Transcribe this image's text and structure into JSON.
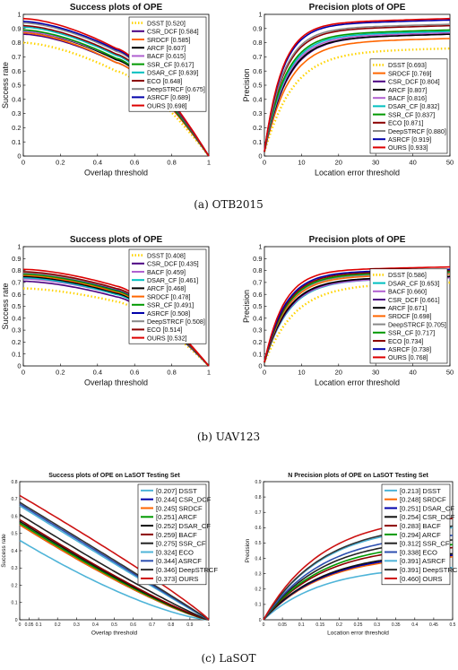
{
  "captions": [
    "(a) OTB2015",
    "(b) UAV123",
    "(c) LaSOT"
  ],
  "chart_data": [
    {
      "type": "line",
      "title": "Success plots of OPE",
      "xlabel": "Overlap threshold",
      "ylabel": "Success rate",
      "xlim": [
        0,
        1
      ],
      "ylim": [
        0,
        1
      ],
      "xticks": [
        0,
        0.2,
        0.4,
        0.6,
        0.8,
        1
      ],
      "yticks": [
        0,
        0.1,
        0.2,
        0.3,
        0.4,
        0.5,
        0.6,
        0.7,
        0.8,
        0.9,
        1
      ],
      "xtick_labels": [
        "0",
        "0.2",
        "0.4",
        "0.6",
        "0.8",
        "1"
      ],
      "ytick_labels": [
        "0",
        "0.1",
        "0.2",
        "0.3",
        "0.4",
        "0.5",
        "0.6",
        "0.7",
        "0.8",
        "0.9",
        "1"
      ],
      "legend_position": "top-right",
      "grid": false,
      "curve": "success",
      "series": [
        {
          "name": "DSST [0.520]",
          "color": "#ffd400",
          "dotted": true,
          "start": 0.8,
          "knee": 0.6
        },
        {
          "name": "CSR_DCF [0.584]",
          "color": "#4b0082",
          "start": 0.86,
          "knee": 0.66
        },
        {
          "name": "SRDCF [0.585]",
          "color": "#ff6600",
          "start": 0.87,
          "knee": 0.66
        },
        {
          "name": "ARCF [0.607]",
          "color": "#000000",
          "start": 0.88,
          "knee": 0.68
        },
        {
          "name": "BACF [0.615]",
          "color": "#b060d0",
          "start": 0.88,
          "knee": 0.69
        },
        {
          "name": "SSR_CF [0.617]",
          "color": "#009900",
          "start": 0.89,
          "knee": 0.69
        },
        {
          "name": "DSAR_CF [0.639]",
          "color": "#00bfbf",
          "start": 0.91,
          "knee": 0.71
        },
        {
          "name": "ECO [0.648]",
          "color": "#8b0000",
          "start": 0.92,
          "knee": 0.72
        },
        {
          "name": "DeepSTRCF [0.675]",
          "color": "#888888",
          "start": 0.94,
          "knee": 0.74
        },
        {
          "name": "ASRCF [0.689]",
          "color": "#0000aa",
          "start": 0.95,
          "knee": 0.75
        },
        {
          "name": "OURS [0.698]",
          "color": "#dd0000",
          "start": 0.97,
          "knee": 0.76
        }
      ]
    },
    {
      "type": "line",
      "title": "Precision plots of OPE",
      "xlabel": "Location error threshold",
      "ylabel": "Precision",
      "xlim": [
        0,
        50
      ],
      "ylim": [
        0,
        1
      ],
      "xticks": [
        0,
        10,
        20,
        30,
        40,
        50
      ],
      "yticks": [
        0,
        0.1,
        0.2,
        0.3,
        0.4,
        0.5,
        0.6,
        0.7,
        0.8,
        0.9,
        1
      ],
      "xtick_labels": [
        "0",
        "10",
        "20",
        "30",
        "40",
        "50"
      ],
      "ytick_labels": [
        "0",
        "0.1",
        "0.2",
        "0.3",
        "0.4",
        "0.5",
        "0.6",
        "0.7",
        "0.8",
        "0.9",
        "1"
      ],
      "legend_position": "bottom-right",
      "grid": false,
      "curve": "precision",
      "series": [
        {
          "name": "DSST [0.693]",
          "color": "#ffd400",
          "dotted": true,
          "final": 0.76,
          "rate": 0.14
        },
        {
          "name": "SRDCF [0.769]",
          "color": "#ff6600",
          "final": 0.83,
          "rate": 0.16
        },
        {
          "name": "CSR_DCF [0.804]",
          "color": "#4b0082",
          "final": 0.86,
          "rate": 0.17
        },
        {
          "name": "ARCF [0.807]",
          "color": "#000000",
          "final": 0.86,
          "rate": 0.175
        },
        {
          "name": "BACF [0.816]",
          "color": "#b060d0",
          "final": 0.87,
          "rate": 0.18
        },
        {
          "name": "DSAR_CF [0.832]",
          "color": "#00bfbf",
          "final": 0.88,
          "rate": 0.185
        },
        {
          "name": "SSR_CF [0.837]",
          "color": "#009900",
          "final": 0.89,
          "rate": 0.19
        },
        {
          "name": "ECO [0.871]",
          "color": "#8b0000",
          "final": 0.92,
          "rate": 0.2
        },
        {
          "name": "DeepSTRCF [0.880]",
          "color": "#888888",
          "final": 0.93,
          "rate": 0.205
        },
        {
          "name": "ASRCF [0.919]",
          "color": "#0000aa",
          "final": 0.96,
          "rate": 0.215
        },
        {
          "name": "OURS [0.933]",
          "color": "#dd0000",
          "final": 0.97,
          "rate": 0.22
        }
      ]
    },
    {
      "type": "line",
      "title": "Success plots of OPE",
      "xlabel": "Overlap threshold",
      "ylabel": "Success rate",
      "xlim": [
        0,
        1
      ],
      "ylim": [
        0,
        1
      ],
      "xticks": [
        0,
        0.2,
        0.4,
        0.6,
        0.8,
        1
      ],
      "yticks": [
        0,
        0.1,
        0.2,
        0.3,
        0.4,
        0.5,
        0.6,
        0.7,
        0.8,
        0.9,
        1
      ],
      "xtick_labels": [
        "0",
        "0.2",
        "0.4",
        "0.6",
        "0.8",
        "1"
      ],
      "ytick_labels": [
        "0",
        "0.1",
        "0.2",
        "0.3",
        "0.4",
        "0.5",
        "0.6",
        "0.7",
        "0.8",
        "0.9",
        "1"
      ],
      "legend_position": "top-right",
      "grid": false,
      "curve": "success",
      "series": [
        {
          "name": "DSST [0.408]",
          "color": "#ffd400",
          "dotted": true,
          "start": 0.65,
          "knee": 0.54
        },
        {
          "name": "CSR_DCF [0.435]",
          "color": "#4b0082",
          "start": 0.71,
          "knee": 0.58
        },
        {
          "name": "BACF [0.459]",
          "color": "#b060d0",
          "start": 0.73,
          "knee": 0.6
        },
        {
          "name": "DSAR_CF [0.461]",
          "color": "#00bfbf",
          "start": 0.74,
          "knee": 0.6
        },
        {
          "name": "ARCF [0.468]",
          "color": "#000000",
          "start": 0.75,
          "knee": 0.61
        },
        {
          "name": "SRDCF [0.478]",
          "color": "#ff6600",
          "start": 0.76,
          "knee": 0.62
        },
        {
          "name": "SSR_CF [0.491]",
          "color": "#009900",
          "start": 0.77,
          "knee": 0.63
        },
        {
          "name": "ASRCF [0.508]",
          "color": "#0000aa",
          "start": 0.78,
          "knee": 0.64
        },
        {
          "name": "DeepSTRCF [0.508]",
          "color": "#888888",
          "start": 0.78,
          "knee": 0.645
        },
        {
          "name": "ECO [0.514]",
          "color": "#8b0000",
          "start": 0.79,
          "knee": 0.65
        },
        {
          "name": "OURS [0.532]",
          "color": "#dd0000",
          "start": 0.81,
          "knee": 0.67
        }
      ]
    },
    {
      "type": "line",
      "title": "Precision plots of OPE",
      "xlabel": "Location error threshold",
      "ylabel": "Precision",
      "xlim": [
        0,
        50
      ],
      "ylim": [
        0,
        1
      ],
      "xticks": [
        0,
        10,
        20,
        30,
        40,
        50
      ],
      "yticks": [
        0,
        0.1,
        0.2,
        0.3,
        0.4,
        0.5,
        0.6,
        0.7,
        0.8,
        0.9,
        1
      ],
      "xtick_labels": [
        "0",
        "10",
        "20",
        "30",
        "40",
        "50"
      ],
      "ytick_labels": [
        "0",
        "0.1",
        "0.2",
        "0.3",
        "0.4",
        "0.5",
        "0.6",
        "0.7",
        "0.8",
        "0.9",
        "1"
      ],
      "legend_position": "bottom-right",
      "grid": false,
      "curve": "precision",
      "series": [
        {
          "name": "DSST [0.586]",
          "color": "#ffd400",
          "dotted": true,
          "final": 0.7,
          "rate": 0.13
        },
        {
          "name": "DSAR_CF [0.653]",
          "color": "#00bfbf",
          "final": 0.74,
          "rate": 0.16
        },
        {
          "name": "BACF [0.660]",
          "color": "#b060d0",
          "final": 0.74,
          "rate": 0.165
        },
        {
          "name": "CSR_DCF [0.661]",
          "color": "#4b0082",
          "final": 0.75,
          "rate": 0.165
        },
        {
          "name": "ARCF [0.671]",
          "color": "#000000",
          "final": 0.75,
          "rate": 0.17
        },
        {
          "name": "SRDCF [0.698]",
          "color": "#ff6600",
          "final": 0.77,
          "rate": 0.175
        },
        {
          "name": "DeepSTRCF [0.705]",
          "color": "#888888",
          "final": 0.78,
          "rate": 0.18
        },
        {
          "name": "SSR_CF [0.717]",
          "color": "#009900",
          "final": 0.79,
          "rate": 0.18
        },
        {
          "name": "ECO [0.734]",
          "color": "#8b0000",
          "final": 0.8,
          "rate": 0.185
        },
        {
          "name": "ASRCF [0.738]",
          "color": "#0000aa",
          "final": 0.81,
          "rate": 0.19
        },
        {
          "name": "OURS [0.768]",
          "color": "#dd0000",
          "final": 0.83,
          "rate": 0.2
        }
      ]
    },
    {
      "type": "line",
      "title": "Success plots of OPE on LaSOT Testing Set",
      "xlabel": "Overlap threshold",
      "ylabel": "Success rate",
      "xlim": [
        0,
        1
      ],
      "ylim": [
        0,
        0.8
      ],
      "xticks": [
        0,
        0.05,
        0.1,
        0.2,
        0.3,
        0.4,
        0.5,
        0.6,
        0.7,
        0.8,
        0.9,
        1
      ],
      "yticks": [
        0,
        0.1,
        0.2,
        0.3,
        0.4,
        0.5,
        0.6,
        0.7,
        0.8
      ],
      "xtick_labels": [
        "0",
        "0.05",
        "0.1",
        "0.2",
        "0.3",
        "0.4",
        "0.5",
        "0.6",
        "0.7",
        "0.8",
        "0.9",
        "1"
      ],
      "ytick_labels": [
        "0",
        "0.1",
        "0.2",
        "0.3",
        "0.4",
        "0.5",
        "0.6",
        "0.7",
        "0.8"
      ],
      "legend_position": "top-right",
      "grid": false,
      "curve": "lasot-success",
      "series": [
        {
          "name": "[0.207] DSST",
          "color": "#4fb4d8",
          "start": 0.46
        },
        {
          "name": "[0.244] CSR_DCF",
          "color": "#0000aa",
          "start": 0.55
        },
        {
          "name": "[0.245] SRDCF",
          "color": "#ff6600",
          "start": 0.55
        },
        {
          "name": "[0.251] ARCF",
          "color": "#009900",
          "start": 0.56
        },
        {
          "name": "[0.252] DSAR_CF",
          "color": "#111111",
          "start": 0.57
        },
        {
          "name": "[0.259] BACF",
          "color": "#8b0000",
          "start": 0.58
        },
        {
          "name": "[0.275] SSR_CF",
          "color": "#222222",
          "start": 0.61
        },
        {
          "name": "[0.324] ECO",
          "color": "#4fb4d8",
          "start": 0.66
        },
        {
          "name": "[0.344] ASRCF",
          "color": "#2d4fb0",
          "start": 0.67
        },
        {
          "name": "[0.346] DeepSTRCF",
          "color": "#333333",
          "start": 0.68
        },
        {
          "name": "[0.373] OURS",
          "color": "#cc1111",
          "start": 0.72
        }
      ]
    },
    {
      "type": "line",
      "title": "N Precision plots of OPE on LaSOT Testing Set",
      "xlabel": "Location error threshold",
      "ylabel": "Precision",
      "xlim": [
        0,
        0.5
      ],
      "ylim": [
        0,
        0.9
      ],
      "xticks": [
        0,
        0.05,
        0.1,
        0.15,
        0.2,
        0.25,
        0.3,
        0.35,
        0.4,
        0.45,
        0.5
      ],
      "yticks": [
        0,
        0.1,
        0.2,
        0.3,
        0.4,
        0.5,
        0.6,
        0.7,
        0.8,
        0.9
      ],
      "xtick_labels": [
        "0",
        "0.05",
        "0.1",
        "0.15",
        "0.2",
        "0.25",
        "0.3",
        "0.35",
        "0.4",
        "0.45",
        "0.5"
      ],
      "ytick_labels": [
        "0",
        "0.1",
        "0.2",
        "0.3",
        "0.4",
        "0.5",
        "0.6",
        "0.7",
        "0.8",
        "0.9"
      ],
      "legend_position": "top-right",
      "grid": false,
      "curve": "lasot-precision",
      "series": [
        {
          "name": "[0.213] DSST",
          "color": "#4fb4d8",
          "end": 0.34
        },
        {
          "name": "[0.248] SRDCF",
          "color": "#ff6600",
          "end": 0.41
        },
        {
          "name": "[0.251] DSAR_CF",
          "color": "#0000aa",
          "end": 0.42
        },
        {
          "name": "[0.254] CSR_DCF",
          "color": "#111111",
          "end": 0.43
        },
        {
          "name": "[0.283] BACF",
          "color": "#8b0000",
          "end": 0.47
        },
        {
          "name": "[0.294] ARCF",
          "color": "#009900",
          "end": 0.49
        },
        {
          "name": "[0.312] SSR_CF",
          "color": "#222222",
          "end": 0.52
        },
        {
          "name": "[0.338] ECO",
          "color": "#2d4fb0",
          "end": 0.55
        },
        {
          "name": "[0.391] ASRCF",
          "color": "#4fb4d8",
          "end": 0.6
        },
        {
          "name": "[0.391] DeepSTRCF",
          "color": "#333333",
          "end": 0.61
        },
        {
          "name": "[0.460] OURS",
          "color": "#cc1111",
          "end": 0.66
        }
      ]
    }
  ]
}
